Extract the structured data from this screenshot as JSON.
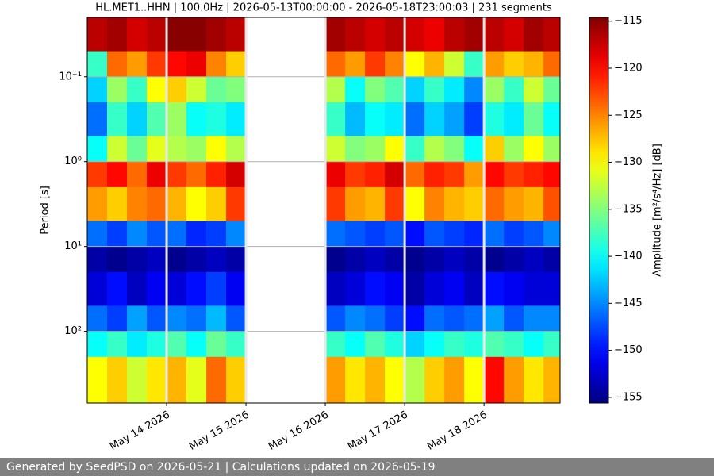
{
  "chart_data": {
    "type": "heatmap",
    "title": "HL.MET1..HHN | 100.0Hz | 2026-05-13T00:00:00 - 2026-05-18T23:00:03 | 231 segments",
    "y_label": "Period [s]",
    "colorbar_label": "Amplitude [m²/s⁴/Hz] [dB]",
    "colormap": "jet",
    "y_log": true,
    "y_inverted": true,
    "grid": true,
    "xlim": [
      "2026-05-13T00:00:00",
      "2026-05-18T23:00:03"
    ],
    "xticks": [
      {
        "value": "2026-05-14T00:00:00",
        "label": "May 14 2026"
      },
      {
        "value": "2026-05-15T00:00:00",
        "label": "May 15 2026"
      },
      {
        "value": "2026-05-16T00:00:00",
        "label": "May 16 2026"
      },
      {
        "value": "2026-05-17T00:00:00",
        "label": "May 17 2026"
      },
      {
        "value": "2026-05-18T00:00:00",
        "label": "May 18 2026"
      }
    ],
    "ylim": [
      0.02,
      700
    ],
    "yticks": [
      {
        "value": 0.1,
        "label": "10⁻¹"
      },
      {
        "value": 1,
        "label": "10⁰"
      },
      {
        "value": 10,
        "label": "10¹"
      },
      {
        "value": 100,
        "label": "10²"
      }
    ],
    "clim": [
      -155.6,
      -114.6
    ],
    "cticks": [
      {
        "value": -115,
        "label": "−115"
      },
      {
        "value": -120,
        "label": "−120"
      },
      {
        "value": -125,
        "label": "−125"
      },
      {
        "value": -130,
        "label": "−130"
      },
      {
        "value": -135,
        "label": "−135"
      },
      {
        "value": -140,
        "label": "−140"
      },
      {
        "value": -145,
        "label": "−145"
      },
      {
        "value": -150,
        "label": "−150"
      },
      {
        "value": -155,
        "label": "−155"
      }
    ],
    "x": [
      "2026-05-13T00:00:00",
      "2026-05-13T06:00:00",
      "2026-05-13T12:00:00",
      "2026-05-13T18:00:00",
      "2026-05-14T00:00:00",
      "2026-05-14T06:00:00",
      "2026-05-14T12:00:00",
      "2026-05-14T18:00:00",
      "2026-05-15T00:00:00",
      "2026-05-15T06:00:00",
      "2026-05-15T12:00:00",
      "2026-05-15T18:00:00",
      "2026-05-16T00:00:00",
      "2026-05-16T06:00:00",
      "2026-05-16T12:00:00",
      "2026-05-16T18:00:00",
      "2026-05-17T00:00:00",
      "2026-05-17T06:00:00",
      "2026-05-17T12:00:00",
      "2026-05-17T18:00:00",
      "2026-05-18T00:00:00",
      "2026-05-18T06:00:00",
      "2026-05-18T12:00:00",
      "2026-05-18T18:00:00",
      "2026-05-18T23:00:03"
    ],
    "periods": [
      0.02,
      0.05,
      0.1,
      0.2,
      0.5,
      1,
      2,
      5,
      10,
      20,
      50,
      100,
      200,
      700
    ],
    "values": [
      [
        -117,
        -116,
        -118,
        -117,
        -115,
        -115,
        -116,
        -117,
        null,
        null,
        null,
        null,
        -116,
        -117,
        -118,
        -117,
        -118,
        -119,
        -117,
        -116,
        -117,
        -118,
        -116,
        -117
      ],
      [
        -138,
        -124,
        -126,
        -122,
        -120,
        -119,
        -125,
        -128,
        null,
        null,
        null,
        null,
        -124,
        -126,
        -122,
        -125,
        -130,
        -127,
        -132,
        -138,
        -126,
        -128,
        -127,
        -124
      ],
      [
        -142,
        -134,
        -138,
        -130,
        -128,
        -132,
        -136,
        -135,
        null,
        null,
        null,
        null,
        -133,
        -140,
        -135,
        -137,
        -142,
        -138,
        -141,
        -145,
        -134,
        -138,
        -132,
        -136
      ],
      [
        -146,
        -138,
        -142,
        -137,
        -134,
        -140,
        -139,
        -141,
        null,
        null,
        null,
        null,
        -138,
        -143,
        -140,
        -141,
        -146,
        -142,
        -144,
        -148,
        -139,
        -141,
        -136,
        -140
      ],
      [
        -140,
        -132,
        -136,
        -131,
        -133,
        -134,
        -130,
        -133,
        null,
        null,
        null,
        null,
        -132,
        -135,
        -134,
        -130,
        -138,
        -133,
        -135,
        -140,
        -128,
        -134,
        -130,
        -134
      ],
      [
        -122,
        -120,
        -124,
        -119,
        -122,
        -124,
        -121,
        -118,
        null,
        null,
        null,
        null,
        -119,
        -122,
        -121,
        -118,
        -124,
        -121,
        -122,
        -126,
        -120,
        -122,
        -121,
        -120
      ],
      [
        -126,
        -128,
        -125,
        -124,
        -127,
        -130,
        -128,
        -122,
        null,
        null,
        null,
        null,
        -122,
        -126,
        -127,
        -122,
        -130,
        -125,
        -127,
        -128,
        -124,
        -126,
        -127,
        -123
      ],
      [
        -146,
        -148,
        -145,
        -147,
        -146,
        -149,
        -148,
        -145,
        null,
        null,
        null,
        null,
        -146,
        -147,
        -148,
        -147,
        -150,
        -147,
        -148,
        -149,
        -146,
        -148,
        -147,
        -145
      ],
      [
        -154,
        -155,
        -154,
        -153,
        -155,
        -154,
        -153,
        -154,
        null,
        null,
        null,
        null,
        -155,
        -154,
        -153,
        -154,
        -155,
        -154,
        -153,
        -154,
        -155,
        -154,
        -153,
        -154
      ],
      [
        -152,
        -150,
        -153,
        -151,
        -152,
        -150,
        -148,
        -151,
        null,
        null,
        null,
        null,
        -153,
        -152,
        -150,
        -151,
        -154,
        -152,
        -151,
        -153,
        -150,
        -151,
        -152,
        -152
      ],
      [
        -146,
        -148,
        -144,
        -147,
        -145,
        -146,
        -143,
        -147,
        null,
        null,
        null,
        null,
        -147,
        -145,
        -146,
        -148,
        -150,
        -146,
        -147,
        -146,
        -144,
        -147,
        -145,
        -145
      ],
      [
        -140,
        -138,
        -141,
        -139,
        -137,
        -140,
        -136,
        -138,
        null,
        null,
        null,
        null,
        -138,
        -140,
        -137,
        -139,
        -142,
        -140,
        -138,
        -139,
        -137,
        -138,
        -140,
        -138
      ],
      [
        -130,
        -128,
        -132,
        -129,
        -127,
        -131,
        -124,
        -128,
        null,
        null,
        null,
        null,
        -126,
        -129,
        -127,
        -130,
        -133,
        -128,
        -126,
        -130,
        -120,
        -126,
        -129,
        -127
      ]
    ]
  },
  "footer": "Generated by SeedPSD on 2026-05-21 | Calculations updated on 2026-05-19"
}
